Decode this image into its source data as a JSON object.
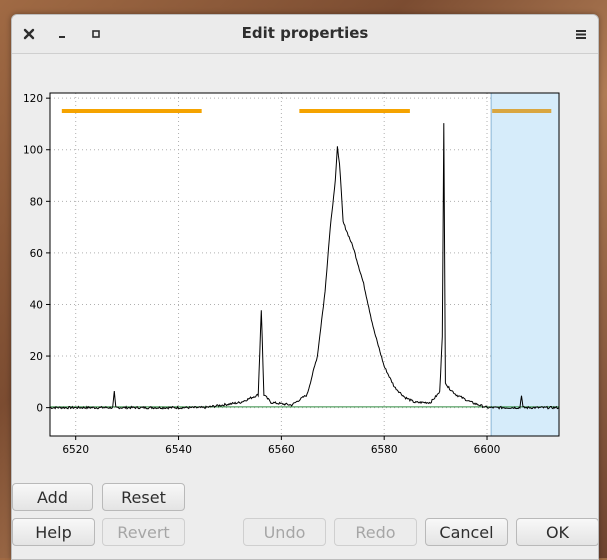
{
  "window": {
    "title": "Edit properties",
    "controls": {
      "close": "close-icon",
      "minimize": "minimize-icon",
      "maximize": "maximize-icon",
      "menu": "hamburger-menu-icon"
    }
  },
  "chart_data": {
    "type": "line",
    "xlim": [
      6515,
      6614
    ],
    "ylim": [
      -11,
      122
    ],
    "xticks": [
      6520,
      6540,
      6560,
      6580,
      6600
    ],
    "yticks": [
      0,
      20,
      40,
      60,
      80,
      100,
      120
    ],
    "grid": true,
    "colors": {
      "spectrum": "#000000",
      "baseline": "#2e8b3e",
      "range_bar": "#f5a300",
      "selected_bar": "#d9a640",
      "selection_fill": "#d6ecfa",
      "selection_edge": "#8ab6d6"
    },
    "spectrum": {
      "baseline_level": 0,
      "x": [
        6515,
        6527.2,
        6527.5,
        6527.8,
        6545,
        6552,
        6555.5,
        6556.1,
        6556.6,
        6558,
        6562,
        6565,
        6567,
        6568.5,
        6569.5,
        6570.5,
        6570.9,
        6571.3,
        6572,
        6574,
        6576,
        6578,
        6580,
        6582,
        6584,
        6586,
        6589,
        6590.8,
        6591.3,
        6591.6,
        6591.9,
        6592.4,
        6594,
        6597,
        6600,
        6606.4,
        6606.7,
        6607,
        6614
      ],
      "y": [
        0,
        0,
        6,
        0,
        0,
        2,
        5,
        38,
        5,
        2,
        1,
        5,
        20,
        45,
        70,
        88,
        101,
        95,
        72,
        62,
        48,
        30,
        16,
        8,
        4,
        2,
        2,
        6,
        28,
        110,
        10,
        8,
        5,
        2,
        0,
        0,
        5,
        0,
        0
      ]
    },
    "baseline": {
      "y": 0.3
    },
    "ranges": [
      {
        "x": [
          6517.3,
          6544.5
        ],
        "y": 115,
        "selected": false
      },
      {
        "x": [
          6563.5,
          6585.0
        ],
        "y": 115,
        "selected": false
      },
      {
        "x": [
          6601.0,
          6612.5
        ],
        "y": 115,
        "selected": true
      }
    ],
    "selection_span": [
      6600.8,
      6614
    ]
  },
  "buttons": {
    "add": "Add",
    "reset": "Reset",
    "help": "Help",
    "revert": "Revert",
    "undo": "Undo",
    "redo": "Redo",
    "cancel": "Cancel",
    "ok": "OK"
  }
}
